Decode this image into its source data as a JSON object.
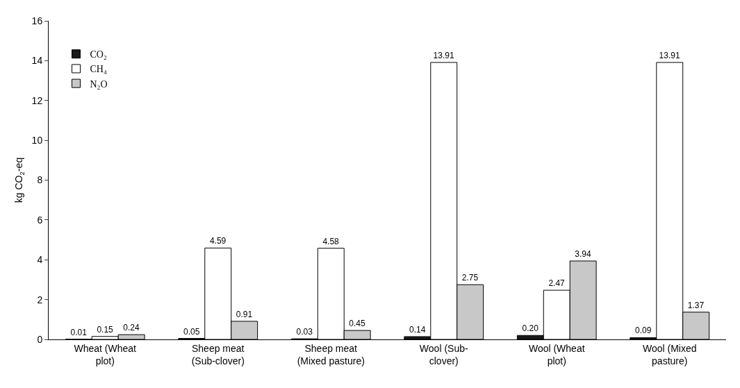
{
  "chart_data": {
    "type": "bar",
    "ylabel": "kg CO$_{2}$-eq",
    "categories": [
      "Wheat (Wheat plot)",
      "Sheep meat (Sub-clover)",
      "Sheep meat (Mixed pasture)",
      "Wool (Sub-clover)",
      "Wool (Wheat plot)",
      "Wool (Mixed pasture)"
    ],
    "series": [
      {
        "name": "CO₂",
        "color": "#1a1a1a",
        "values": [
          0.01,
          0.05,
          0.03,
          0.14,
          0.2,
          0.09
        ],
        "value_labels": [
          "0.01",
          "0.05",
          "0.03",
          "0.14",
          "0.20",
          "0.09"
        ]
      },
      {
        "name": "CH₄",
        "color": "#ffffff",
        "values": [
          0.15,
          4.59,
          4.58,
          13.91,
          2.47,
          13.91
        ],
        "value_labels": [
          "0.15",
          "4.59",
          "4.58",
          "13.91",
          "2.47",
          "13.91"
        ]
      },
      {
        "name": "N₂O",
        "color": "#c8c8c8",
        "values": [
          0.24,
          0.91,
          0.45,
          2.75,
          3.94,
          1.37
        ],
        "value_labels": [
          "0.24",
          "0.91",
          "0.45",
          "2.75",
          "3.94",
          "1.37"
        ]
      }
    ],
    "ylim": [
      0,
      16
    ],
    "yticks": [
      0,
      2,
      4,
      6,
      8,
      10,
      12,
      14,
      16
    ],
    "grid": false,
    "legend": "top left"
  }
}
